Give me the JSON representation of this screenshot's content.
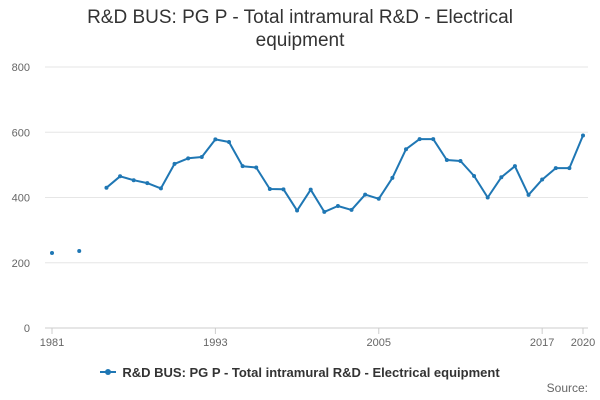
{
  "chart_data": {
    "type": "line",
    "title": "R&D BUS: PG P - Total intramural R&D - Electrical equipment",
    "xlabel": "",
    "ylabel": "",
    "x_ticks": [
      "1981",
      "1993",
      "2005",
      "2017",
      "2020"
    ],
    "y_ticks": [
      "0",
      "200",
      "400",
      "600",
      "800"
    ],
    "ylim": [
      0,
      800
    ],
    "xlim": [
      1981,
      2020
    ],
    "grid": true,
    "legend_position": "bottom",
    "series": [
      {
        "name": "R&D BUS: PG P - Total intramural R&D - Electrical equipment",
        "color": "#1f77b4",
        "points": [
          {
            "x": 1981,
            "y": 230
          },
          {
            "x": 1983,
            "y": 236
          },
          {
            "x": 1985,
            "y": 430
          },
          {
            "x": 1986,
            "y": 465
          },
          {
            "x": 1987,
            "y": 453
          },
          {
            "x": 1988,
            "y": 444
          },
          {
            "x": 1989,
            "y": 428
          },
          {
            "x": 1990,
            "y": 503
          },
          {
            "x": 1991,
            "y": 520
          },
          {
            "x": 1992,
            "y": 524
          },
          {
            "x": 1993,
            "y": 578
          },
          {
            "x": 1994,
            "y": 570
          },
          {
            "x": 1995,
            "y": 496
          },
          {
            "x": 1996,
            "y": 492
          },
          {
            "x": 1997,
            "y": 426
          },
          {
            "x": 1998,
            "y": 425
          },
          {
            "x": 1999,
            "y": 360
          },
          {
            "x": 2000,
            "y": 424
          },
          {
            "x": 2001,
            "y": 356
          },
          {
            "x": 2002,
            "y": 374
          },
          {
            "x": 2003,
            "y": 362
          },
          {
            "x": 2004,
            "y": 409
          },
          {
            "x": 2005,
            "y": 396
          },
          {
            "x": 2006,
            "y": 460
          },
          {
            "x": 2007,
            "y": 548
          },
          {
            "x": 2008,
            "y": 579
          },
          {
            "x": 2009,
            "y": 579
          },
          {
            "x": 2010,
            "y": 515
          },
          {
            "x": 2011,
            "y": 512
          },
          {
            "x": 2012,
            "y": 466
          },
          {
            "x": 2013,
            "y": 400
          },
          {
            "x": 2014,
            "y": 462
          },
          {
            "x": 2015,
            "y": 496
          },
          {
            "x": 2016,
            "y": 408
          },
          {
            "x": 2017,
            "y": 455
          },
          {
            "x": 2018,
            "y": 490
          },
          {
            "x": 2019,
            "y": 490
          },
          {
            "x": 2020,
            "y": 590
          }
        ]
      }
    ]
  },
  "footer": {
    "source_label": "Source:"
  }
}
